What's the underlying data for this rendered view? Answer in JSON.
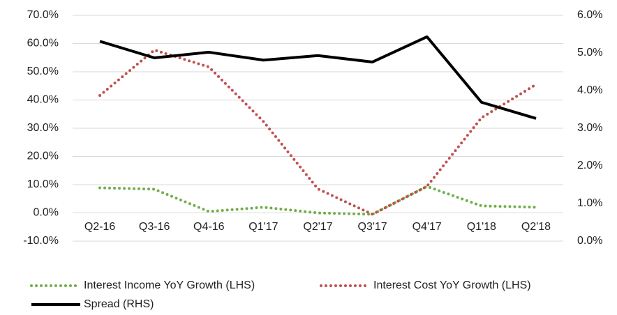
{
  "chart_data": {
    "type": "line",
    "categories": [
      "Q2-16",
      "Q3-16",
      "Q4-16",
      "Q1'17",
      "Q2'17",
      "Q3'17",
      "Q4'17",
      "Q1'18",
      "Q2'18"
    ],
    "series": [
      {
        "name": "Interest Income YoY Growth (LHS)",
        "color": "#70ad47",
        "style": "dotted",
        "axis": "y",
        "values": [
          8.9,
          8.4,
          0.5,
          2.0,
          0.0,
          -0.5,
          9.4,
          2.5,
          2.0
        ]
      },
      {
        "name": "Interest Cost YoY Growth (LHS)",
        "color": "#c0504d",
        "style": "dotted",
        "axis": "y",
        "values": [
          41.6,
          57.7,
          51.7,
          32.4,
          8.5,
          -0.5,
          9.4,
          33.7,
          45.5
        ]
      },
      {
        "name": "Spread (RHS)",
        "color": "#000000",
        "style": "solid",
        "axis": "y2",
        "values": [
          5.31,
          4.87,
          5.02,
          4.81,
          4.93,
          4.76,
          5.43,
          3.69,
          3.26
        ]
      }
    ],
    "ylim": [
      -10,
      70
    ],
    "yticks": [
      {
        "value": -10,
        "label": "-10.0%"
      },
      {
        "value": 0,
        "label": "0.0%"
      },
      {
        "value": 10,
        "label": "10.0%"
      },
      {
        "value": 20,
        "label": "20.0%"
      },
      {
        "value": 30,
        "label": "30.0%"
      },
      {
        "value": 40,
        "label": "40.0%"
      },
      {
        "value": 50,
        "label": "50.0%"
      },
      {
        "value": 60,
        "label": "60.0%"
      },
      {
        "value": 70,
        "label": "70.0%"
      }
    ],
    "y2lim": [
      0,
      6
    ],
    "y2ticks": [
      {
        "value": 0,
        "label": "0.0%"
      },
      {
        "value": 1,
        "label": "1.0%"
      },
      {
        "value": 2,
        "label": "2.0%"
      },
      {
        "value": 3,
        "label": "3.0%"
      },
      {
        "value": 4,
        "label": "4.0%"
      },
      {
        "value": 5,
        "label": "5.0%"
      },
      {
        "value": 6,
        "label": "6.0%"
      }
    ],
    "grid": true,
    "legend": "bottom"
  }
}
